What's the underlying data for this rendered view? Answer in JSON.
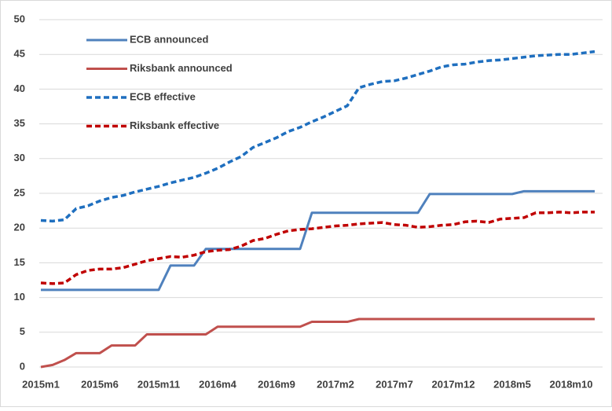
{
  "chart_data": {
    "type": "line",
    "categories": [
      "2015m1",
      null,
      null,
      null,
      null,
      "2015m6",
      null,
      null,
      null,
      null,
      "2015m11",
      null,
      null,
      null,
      null,
      "2016m4",
      null,
      null,
      null,
      null,
      "2016m9",
      null,
      null,
      null,
      null,
      "2017m2",
      null,
      null,
      null,
      null,
      "2017m7",
      null,
      null,
      null,
      null,
      "2017m12",
      null,
      null,
      null,
      null,
      "2018m5",
      null,
      null,
      null,
      null,
      "2018m10",
      null,
      null
    ],
    "series": [
      {
        "name": "ECB announced",
        "color": "#4f81bd",
        "style": "solid",
        "values": [
          11.1,
          11.1,
          11.1,
          11.1,
          11.1,
          11.1,
          11.1,
          11.1,
          11.1,
          11.1,
          11.1,
          14.6,
          14.6,
          14.6,
          17.0,
          17.0,
          17.0,
          17.0,
          17.0,
          17.0,
          17.0,
          17.0,
          17.0,
          22.2,
          22.2,
          22.2,
          22.2,
          22.2,
          22.2,
          22.2,
          22.2,
          22.2,
          22.2,
          24.9,
          24.9,
          24.9,
          24.9,
          24.9,
          24.9,
          24.9,
          24.9,
          25.3,
          25.3,
          25.3,
          25.3,
          25.3,
          25.3,
          25.3
        ]
      },
      {
        "name": "Riksbank announced",
        "color": "#c0504d",
        "style": "solid",
        "values": [
          0,
          0.3,
          1.0,
          2.0,
          2.0,
          2.0,
          3.1,
          3.1,
          3.1,
          4.7,
          4.7,
          4.7,
          4.7,
          4.7,
          4.7,
          5.8,
          5.8,
          5.8,
          5.8,
          5.8,
          5.8,
          5.8,
          5.8,
          6.5,
          6.5,
          6.5,
          6.5,
          6.9,
          6.9,
          6.9,
          6.9,
          6.9,
          6.9,
          6.9,
          6.9,
          6.9,
          6.9,
          6.9,
          6.9,
          6.9,
          6.9,
          6.9,
          6.9,
          6.9,
          6.9,
          6.9,
          6.9,
          6.9
        ]
      },
      {
        "name": "ECB effective",
        "color": "#1f6fbf",
        "style": "dashed",
        "values": [
          21.1,
          21.0,
          21.2,
          22.8,
          23.2,
          23.9,
          24.4,
          24.7,
          25.2,
          25.6,
          26.0,
          26.5,
          26.9,
          27.3,
          27.9,
          28.6,
          29.5,
          30.3,
          31.6,
          32.3,
          33.0,
          33.9,
          34.5,
          35.3,
          36.0,
          36.8,
          37.6,
          40.2,
          40.7,
          41.1,
          41.2,
          41.6,
          42.1,
          42.6,
          43.2,
          43.5,
          43.6,
          43.9,
          44.1,
          44.2,
          44.4,
          44.6,
          44.8,
          44.9,
          45.0,
          45.0,
          45.2,
          45.4
        ]
      },
      {
        "name": "Riksbank effective",
        "color": "#c00000",
        "style": "dashed",
        "values": [
          12.1,
          12.0,
          12.1,
          13.3,
          13.9,
          14.1,
          14.1,
          14.3,
          14.8,
          15.3,
          15.6,
          15.9,
          15.8,
          16.1,
          16.6,
          16.8,
          16.9,
          17.4,
          18.2,
          18.5,
          19.1,
          19.6,
          19.8,
          19.9,
          20.1,
          20.3,
          20.4,
          20.6,
          20.7,
          20.8,
          20.5,
          20.4,
          20.1,
          20.2,
          20.4,
          20.5,
          20.9,
          21.0,
          20.8,
          21.3,
          21.4,
          21.5,
          22.2,
          22.2,
          22.3,
          22.2,
          22.3,
          22.3
        ]
      }
    ],
    "ylim": [
      0,
      50
    ],
    "yticks": [
      0,
      5,
      10,
      15,
      20,
      25,
      30,
      35,
      40,
      45,
      50
    ],
    "grid": true,
    "legend": "top-left"
  }
}
